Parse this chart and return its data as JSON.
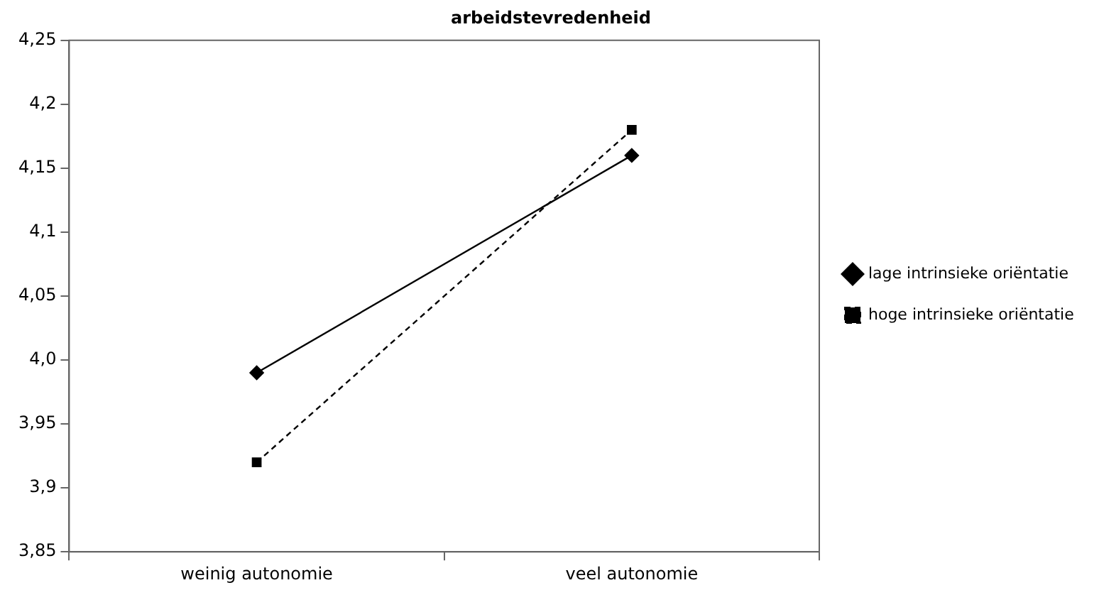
{
  "chart_data": {
    "type": "line",
    "title": "arbeidstevredenheid",
    "categories": [
      "weinig autonomie",
      "veel autonomie"
    ],
    "series": [
      {
        "name": "lage intrinsieke oriëntatie",
        "color": "#000000",
        "values": [
          3.99,
          4.16
        ],
        "marker": "diamond",
        "line_style": "solid"
      },
      {
        "name": "hoge intrinsieke oriëntatie",
        "color": "#000000",
        "values": [
          3.92,
          4.18
        ],
        "marker": "square",
        "line_style": "dashed"
      }
    ],
    "ylim": [
      3.85,
      4.25
    ],
    "yticks": [
      {
        "value": 3.85,
        "label": "3,85"
      },
      {
        "value": 3.9,
        "label": "3,9"
      },
      {
        "value": 3.95,
        "label": "3,95"
      },
      {
        "value": 4,
        "label": "4,0"
      },
      {
        "value": 4.05,
        "label": "4,05"
      },
      {
        "value": 4.1,
        "label": "4,1"
      },
      {
        "value": 4.15,
        "label": "4,15"
      },
      {
        "value": 4.2,
        "label": "4,2"
      },
      {
        "value": 4.25,
        "label": "4,25"
      }
    ],
    "grid": false,
    "legend": "right"
  }
}
